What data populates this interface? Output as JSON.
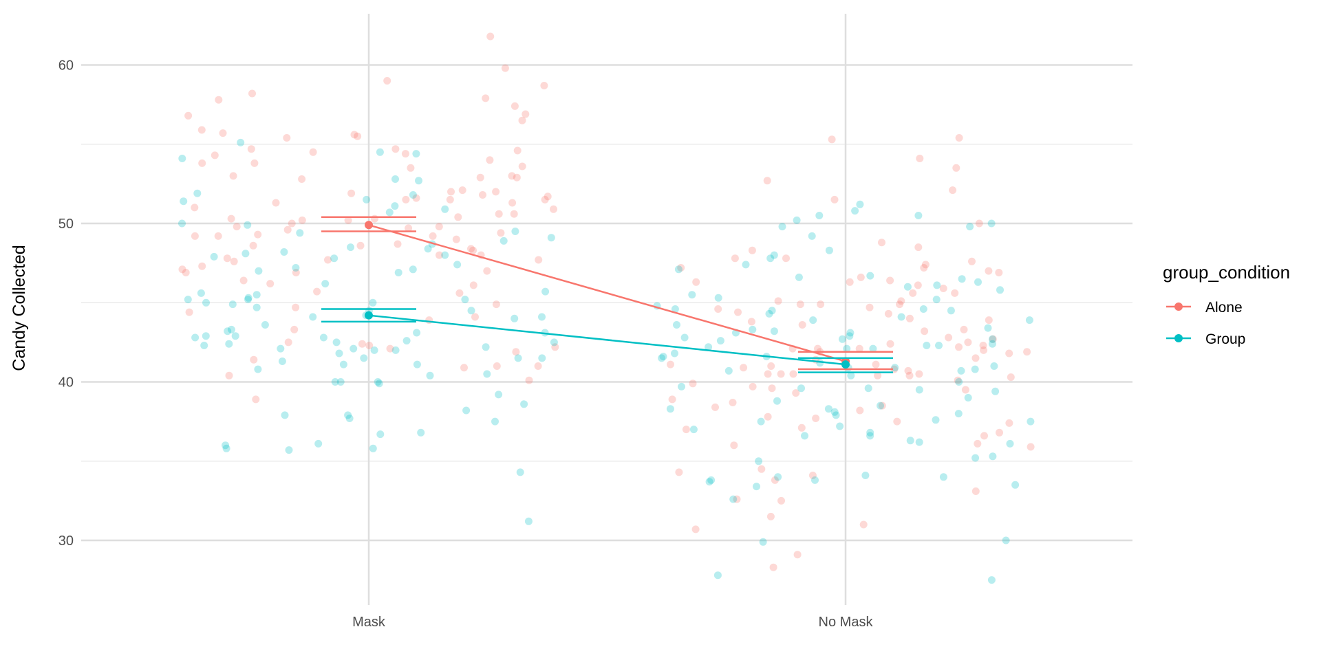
{
  "chart_data": {
    "type": "scatter",
    "xlabel": "",
    "ylabel": "Candy Collected",
    "categories": [
      "Mask",
      "No Mask"
    ],
    "ylim": [
      26,
      63
    ],
    "yticks": [
      30,
      40,
      50,
      60
    ],
    "grid": true,
    "legend": {
      "title": "group_condition",
      "position": "right",
      "entries": [
        "Alone",
        "Group"
      ]
    },
    "colors": {
      "Alone": "#F8766D",
      "Group": "#00BFC4"
    },
    "summary": [
      {
        "name": "Alone",
        "means": [
          49.9,
          41.3
        ],
        "ci_low": [
          49.5,
          40.8
        ],
        "ci_high": [
          50.4,
          41.9
        ]
      },
      {
        "name": "Group",
        "means": [
          44.2,
          41.1
        ],
        "ci_low": [
          43.8,
          40.6
        ],
        "ci_high": [
          44.6,
          41.5
        ]
      }
    ],
    "points": [
      {
        "name": "Alone",
        "Mask": [
          61.8,
          58.7,
          57.8,
          56.9,
          56.5,
          54.5,
          53.6,
          53.5,
          53.0,
          52.0,
          51.9,
          51.7,
          51.5,
          51.5,
          50.3,
          50.2,
          50.2,
          49.6,
          49.4,
          49.2,
          49.0,
          48.6,
          48.4,
          48.0,
          47.7,
          47.3,
          47.1,
          46.9,
          46.2,
          45.7,
          44.7,
          42.5,
          57.9,
          57.4,
          55.4,
          54.7,
          54.7,
          53.8,
          53.0,
          52.9,
          52.0,
          51.5,
          50.9,
          50.3,
          49.8,
          49.2,
          48.6,
          48.0,
          47.8,
          46.9,
          44.4,
          44.1,
          43.9,
          42.4,
          42.3,
          42.2,
          42.1,
          41.9,
          41.0,
          55.6,
          55.7,
          54.6,
          54.4,
          51.3,
          50.6,
          50.4,
          49.2,
          47.7,
          46.1,
          45.6,
          44.9,
          43.3,
          41.4,
          40.9,
          40.4,
          38.9,
          59.8,
          59.0,
          58.2,
          56.8,
          55.9,
          55.5,
          54.3,
          54.0,
          53.8,
          52.9,
          52.8,
          52.1,
          51.8,
          51.6,
          51.3,
          51.0,
          50.6,
          50.0,
          49.8,
          49.7,
          49.3,
          48.7,
          48.3,
          47.6,
          47.0,
          46.4,
          41.0,
          40.1
        ],
        "No Mask": [
          52.1,
          52.7,
          50.0,
          48.8,
          48.3,
          47.8,
          47.4,
          47.2,
          47.0,
          46.9,
          46.3,
          45.6,
          45.1,
          44.9,
          44.7,
          44.6,
          44.3,
          43.3,
          42.7,
          42.3,
          42.1,
          41.9,
          41.4,
          41.0,
          40.8,
          40.5,
          40.5,
          40.4,
          40.4,
          39.5,
          38.7,
          38.5,
          37.5,
          37.0,
          36.0,
          34.5,
          34.3,
          34.1,
          55.4,
          54.1,
          53.5,
          51.5,
          48.5,
          47.6,
          46.6,
          45.6,
          44.9,
          44.4,
          43.9,
          43.6,
          43.2,
          42.8,
          42.5,
          42.2,
          41.9,
          41.1,
          40.5,
          40.3,
          39.9,
          39.3,
          38.9,
          38.4,
          37.7,
          37.4,
          36.6,
          35.9,
          33.8,
          33.1,
          32.6,
          32.5,
          31.0,
          30.7,
          55.3,
          47.8,
          47.2,
          46.4,
          46.3,
          46.1,
          45.9,
          45.1,
          44.9,
          44.0,
          43.8,
          42.4,
          42.1,
          42.1,
          42.0,
          41.8,
          41.5,
          41.1,
          40.9,
          40.7,
          40.5,
          40.1,
          39.7,
          39.6,
          38.2,
          37.8,
          37.1,
          36.8,
          36.1,
          31.5,
          29.1,
          28.3
        ]
      },
      {
        "name": "Group",
        "Mask": [
          54.1,
          51.9,
          51.4,
          49.4,
          47.4,
          47.1,
          45.0,
          43.1,
          42.9,
          42.8,
          42.0,
          41.3,
          40.0,
          40.0,
          38.6,
          36.0,
          36.1,
          35.7,
          31.2,
          55.1,
          52.7,
          51.5,
          49.9,
          48.9,
          48.7,
          48.4,
          48.0,
          47.9,
          47.2,
          45.3,
          45.2,
          44.1,
          42.5,
          42.2,
          41.5,
          41.1,
          40.0,
          39.9,
          37.9,
          37.9,
          54.5,
          54.4,
          52.8,
          51.8,
          50.0,
          49.5,
          48.2,
          48.1,
          47.8,
          47.0,
          46.9,
          45.6,
          45.2,
          44.9,
          44.5,
          44.2,
          43.6,
          43.2,
          43.1,
          42.8,
          42.4,
          42.1,
          42.0,
          41.5,
          41.1,
          40.8,
          40.4,
          38.2,
          37.7,
          36.8,
          36.7,
          35.8,
          35.8,
          34.3,
          51.1,
          50.7,
          50.9,
          49.1,
          48.5,
          46.2,
          45.7,
          45.5,
          45.2,
          45.0,
          44.7,
          44.5,
          44.1,
          44.0,
          43.3,
          42.9,
          42.6,
          42.5,
          42.3,
          42.1,
          41.8,
          41.5,
          40.5,
          39.2,
          37.5
        ],
        "No Mask": [
          50.5,
          48.3,
          47.8,
          46.7,
          46.5,
          46.0,
          45.5,
          45.2,
          44.8,
          44.6,
          43.9,
          43.3,
          43.2,
          42.7,
          42.1,
          41.6,
          41.2,
          40.7,
          39.6,
          39.5,
          38.1,
          37.5,
          34.1,
          33.7,
          27.5,
          47.1,
          46.6,
          44.5,
          43.9,
          43.6,
          43.1,
          42.9,
          42.7,
          42.3,
          41.5,
          40.9,
          39.7,
          38.5,
          37.2,
          36.6,
          35.3,
          34.0,
          50.8,
          49.8,
          44.5,
          42.4,
          42.1,
          41.8,
          41.0,
          40.9,
          39.0,
          38.8,
          38.3,
          37.9,
          36.8,
          35.2,
          33.8,
          33.4,
          32.6,
          29.9,
          27.8,
          51.2,
          50.5,
          50.2,
          50.0,
          49.8,
          49.2,
          48.0,
          47.4,
          46.3,
          46.1,
          45.8,
          45.3,
          44.6,
          44.3,
          44.1,
          43.4,
          43.1,
          42.8,
          42.6,
          42.3,
          42.2,
          41.6,
          40.8,
          40.7,
          40.4,
          40.0,
          39.6,
          39.4,
          38.3,
          38.0,
          37.6,
          37.5,
          37.0,
          36.6,
          36.3,
          36.2,
          36.1,
          35.0,
          34.0,
          33.8,
          33.5,
          30.0
        ]
      }
    ]
  }
}
